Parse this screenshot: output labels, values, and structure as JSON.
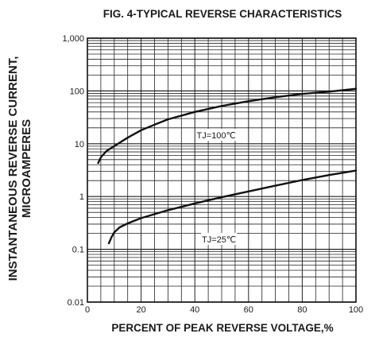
{
  "chart_data": {
    "type": "line",
    "title": "FIG. 4-TYPICAL REVERSE CHARACTERISTICS",
    "xlabel": "PERCENT OF PEAK REVERSE VOLTAGE,%",
    "ylabel_line1": "INSTANTANEOUS REVERSE CURRENT,",
    "ylabel_line2": "MICROAMPERES",
    "xlim": [
      0,
      100
    ],
    "ylim": [
      0.01,
      1000
    ],
    "yscale": "log",
    "grid": true,
    "x_ticks": [
      {
        "value": 0,
        "label": "0"
      },
      {
        "value": 20,
        "label": "20"
      },
      {
        "value": 40,
        "label": "40"
      },
      {
        "value": 60,
        "label": "60"
      },
      {
        "value": 80,
        "label": "80"
      },
      {
        "value": 100,
        "label": "100"
      }
    ],
    "y_ticks": [
      {
        "value": 1000,
        "label": "1,000"
      },
      {
        "value": 100,
        "label": "100"
      },
      {
        "value": 10,
        "label": "10"
      },
      {
        "value": 1,
        "label": "1"
      },
      {
        "value": 0.1,
        "label": "0.1"
      },
      {
        "value": 0.01,
        "label": "0.01"
      }
    ],
    "series": [
      {
        "name": "TJ=100℃",
        "label_at": [
          48,
          14.5
        ],
        "points": [
          [
            4,
            4.3
          ],
          [
            5,
            5.5
          ],
          [
            7,
            7.2
          ],
          [
            10,
            9
          ],
          [
            15,
            13
          ],
          [
            20,
            18
          ],
          [
            25,
            23
          ],
          [
            30,
            29
          ],
          [
            40,
            40
          ],
          [
            50,
            52
          ],
          [
            60,
            64
          ],
          [
            70,
            76
          ],
          [
            80,
            88
          ],
          [
            90,
            97
          ],
          [
            100,
            110
          ]
        ]
      },
      {
        "name": "TJ=25℃",
        "label_at": [
          49,
          0.155
        ],
        "points": [
          [
            8,
            0.13
          ],
          [
            9,
            0.17
          ],
          [
            10,
            0.21
          ],
          [
            12,
            0.26
          ],
          [
            15,
            0.31
          ],
          [
            20,
            0.39
          ],
          [
            30,
            0.55
          ],
          [
            40,
            0.74
          ],
          [
            50,
            0.97
          ],
          [
            60,
            1.25
          ],
          [
            70,
            1.6
          ],
          [
            80,
            2.05
          ],
          [
            90,
            2.55
          ],
          [
            100,
            3.1
          ]
        ]
      }
    ]
  }
}
